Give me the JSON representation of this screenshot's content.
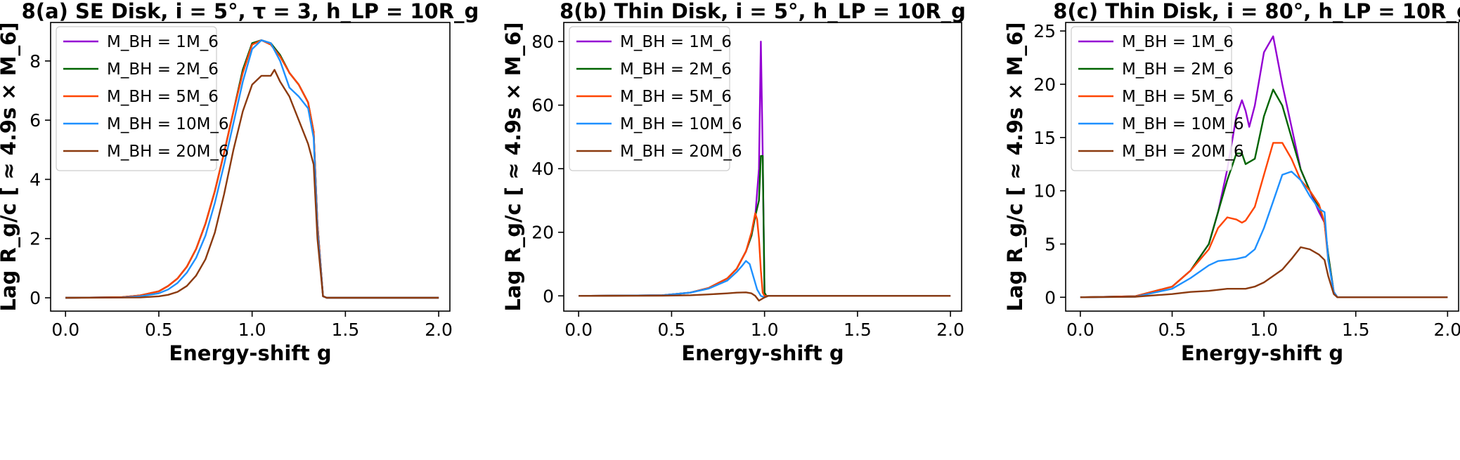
{
  "chart_data": [
    {
      "type": "line",
      "title": "8(a) SE Disk, i = 5°, τ = 3, h_LP = 10R_g",
      "xlabel": "Energy-shift g",
      "ylabel": "Lag R_g/c [ ≈ 4.9s × M_6]",
      "xlim": [
        -0.08,
        2.06
      ],
      "ylim": [
        -0.45,
        9.3
      ],
      "xticks": [
        "0.0",
        "0.5",
        "1.0",
        "1.5",
        "2.0"
      ],
      "yticks": [
        "0",
        "2",
        "4",
        "6",
        "8"
      ],
      "legend_loc": "top-left",
      "series": [
        {
          "name": "M_BH = 1M_6",
          "color": "#9400d3",
          "x": [
            0.0,
            0.3,
            0.4,
            0.5,
            0.55,
            0.6,
            0.65,
            0.7,
            0.75,
            0.8,
            0.85,
            0.9,
            0.95,
            1.0,
            1.05,
            1.1,
            1.15,
            1.2,
            1.25,
            1.3,
            1.33,
            1.35,
            1.38,
            1.4,
            1.6,
            1.8,
            2.0
          ],
          "y": [
            0,
            0.02,
            0.08,
            0.22,
            0.4,
            0.65,
            1.05,
            1.65,
            2.5,
            3.6,
            4.9,
            6.3,
            7.7,
            8.6,
            8.7,
            8.6,
            8.2,
            7.6,
            7.2,
            6.6,
            5.6,
            2.5,
            0.05,
            0,
            0,
            0,
            0
          ]
        },
        {
          "name": "M_BH = 2M_6",
          "color": "#006400",
          "x": [
            0.0,
            0.3,
            0.4,
            0.5,
            0.55,
            0.6,
            0.65,
            0.7,
            0.75,
            0.8,
            0.85,
            0.9,
            0.95,
            1.0,
            1.05,
            1.1,
            1.15,
            1.2,
            1.25,
            1.3,
            1.33,
            1.35,
            1.38,
            1.4,
            1.6,
            1.8,
            2.0
          ],
          "y": [
            0,
            0.02,
            0.08,
            0.22,
            0.4,
            0.65,
            1.05,
            1.65,
            2.5,
            3.6,
            4.9,
            6.3,
            7.7,
            8.6,
            8.7,
            8.6,
            8.2,
            7.6,
            7.2,
            6.6,
            5.6,
            2.5,
            0.05,
            0,
            0,
            0,
            0
          ]
        },
        {
          "name": "M_BH = 5M_6",
          "color": "#ff4500",
          "x": [
            0.0,
            0.3,
            0.4,
            0.5,
            0.55,
            0.6,
            0.65,
            0.7,
            0.75,
            0.8,
            0.85,
            0.9,
            0.95,
            1.0,
            1.05,
            1.1,
            1.15,
            1.2,
            1.25,
            1.3,
            1.33,
            1.35,
            1.38,
            1.4,
            1.6,
            1.8,
            2.0
          ],
          "y": [
            0,
            0.02,
            0.08,
            0.22,
            0.4,
            0.65,
            1.05,
            1.65,
            2.5,
            3.6,
            4.9,
            6.3,
            7.6,
            8.55,
            8.7,
            8.55,
            8.15,
            7.6,
            7.2,
            6.6,
            5.6,
            2.5,
            0.05,
            0,
            0,
            0,
            0
          ]
        },
        {
          "name": "M_BH = 10M_6",
          "color": "#1e90ff",
          "x": [
            0.0,
            0.3,
            0.4,
            0.5,
            0.55,
            0.6,
            0.65,
            0.7,
            0.75,
            0.8,
            0.85,
            0.9,
            0.95,
            1.0,
            1.05,
            1.1,
            1.15,
            1.2,
            1.25,
            1.3,
            1.33,
            1.35,
            1.38,
            1.4,
            1.6,
            1.8,
            2.0
          ],
          "y": [
            0,
            0.01,
            0.05,
            0.15,
            0.28,
            0.5,
            0.85,
            1.35,
            2.1,
            3.2,
            4.5,
            5.9,
            7.3,
            8.4,
            8.7,
            8.6,
            8.0,
            7.1,
            6.8,
            6.4,
            5.4,
            2.3,
            0.05,
            0,
            0,
            0,
            0
          ]
        },
        {
          "name": "M_BH = 20M_6",
          "color": "#8b3a0f",
          "x": [
            0.0,
            0.4,
            0.5,
            0.55,
            0.6,
            0.65,
            0.7,
            0.75,
            0.8,
            0.85,
            0.9,
            0.95,
            1.0,
            1.05,
            1.1,
            1.12,
            1.15,
            1.2,
            1.25,
            1.3,
            1.33,
            1.35,
            1.38,
            1.4,
            1.6,
            1.8,
            2.0
          ],
          "y": [
            0,
            0.01,
            0.05,
            0.1,
            0.2,
            0.4,
            0.75,
            1.3,
            2.2,
            3.5,
            5.0,
            6.3,
            7.2,
            7.5,
            7.5,
            7.7,
            7.3,
            6.8,
            6.0,
            5.2,
            4.5,
            2.0,
            0.05,
            0,
            0,
            0,
            0
          ]
        }
      ]
    },
    {
      "type": "line",
      "title": "8(b) Thin Disk, i = 5°, h_LP = 10R_g",
      "xlabel": "Energy-shift g",
      "ylabel": "Lag R_g/c [ ≈ 4.9s × M_6]",
      "xlim": [
        -0.08,
        2.06
      ],
      "ylim": [
        -4.8,
        86
      ],
      "xticks": [
        "0.0",
        "0.5",
        "1.0",
        "1.5",
        "2.0"
      ],
      "yticks": [
        "0",
        "20",
        "40",
        "60",
        "80"
      ],
      "legend_loc": "top-left",
      "series": [
        {
          "name": "M_BH = 1M_6",
          "color": "#9400d3",
          "x": [
            0.0,
            0.45,
            0.6,
            0.7,
            0.8,
            0.85,
            0.9,
            0.93,
            0.95,
            0.97,
            0.98,
            0.99,
            1.0,
            1.01,
            1.2,
            1.5,
            2.0
          ],
          "y": [
            0,
            0.2,
            1.0,
            2.5,
            5.5,
            8.5,
            14,
            19,
            25,
            40,
            80,
            45,
            1,
            0,
            0,
            0,
            0
          ]
        },
        {
          "name": "M_BH = 2M_6",
          "color": "#006400",
          "x": [
            0.0,
            0.45,
            0.6,
            0.7,
            0.8,
            0.85,
            0.9,
            0.93,
            0.95,
            0.97,
            0.98,
            0.99,
            1.0,
            1.01,
            1.2,
            1.5,
            2.0
          ],
          "y": [
            0,
            0.2,
            1.0,
            2.5,
            5.5,
            8.5,
            14,
            19,
            25,
            30,
            44,
            44,
            1,
            0,
            0,
            0,
            0
          ]
        },
        {
          "name": "M_BH = 5M_6",
          "color": "#ff4500",
          "x": [
            0.0,
            0.45,
            0.6,
            0.7,
            0.8,
            0.85,
            0.9,
            0.93,
            0.95,
            0.96,
            0.97,
            0.98,
            0.99,
            1.0,
            1.2,
            1.5,
            2.0
          ],
          "y": [
            0,
            0.2,
            1.0,
            2.5,
            5.5,
            8.5,
            14,
            20,
            26,
            24,
            18,
            8,
            1,
            0,
            0,
            0,
            0
          ]
        },
        {
          "name": "M_BH = 10M_6",
          "color": "#1e90ff",
          "x": [
            0.0,
            0.45,
            0.6,
            0.7,
            0.8,
            0.85,
            0.88,
            0.9,
            0.92,
            0.94,
            0.96,
            0.98,
            1.0,
            1.02,
            1.2,
            1.5,
            2.0
          ],
          "y": [
            0,
            0.2,
            1.0,
            2.3,
            4.8,
            7.5,
            9.5,
            11,
            10,
            6,
            2,
            0,
            -0.5,
            0,
            0,
            0,
            0
          ]
        },
        {
          "name": "M_BH = 20M_6",
          "color": "#8b3a0f",
          "x": [
            0.0,
            0.45,
            0.6,
            0.7,
            0.8,
            0.85,
            0.9,
            0.93,
            0.95,
            0.97,
            1.0,
            1.02,
            1.2,
            1.5,
            2.0
          ],
          "y": [
            0,
            0.05,
            0.2,
            0.45,
            0.8,
            1.0,
            1.1,
            0.8,
            0,
            -1.5,
            -0.5,
            0,
            0,
            0,
            0
          ]
        }
      ]
    },
    {
      "type": "line",
      "title": "8(c) Thin Disk, i = 80°, h_LP = 10R_g",
      "xlabel": "Energy-shift g",
      "ylabel": "Lag R_g/c [ ≈ 4.9s × M_6]",
      "xlim": [
        -0.08,
        2.06
      ],
      "ylim": [
        -1.3,
        25.8
      ],
      "xticks": [
        "0.0",
        "0.5",
        "1.0",
        "1.5",
        "2.0"
      ],
      "yticks": [
        "0",
        "5",
        "10",
        "15",
        "20",
        "25"
      ],
      "legend_loc": "top-left",
      "series": [
        {
          "name": "M_BH = 1M_6",
          "color": "#9400d3",
          "x": [
            0.0,
            0.3,
            0.5,
            0.6,
            0.7,
            0.75,
            0.8,
            0.85,
            0.88,
            0.9,
            0.92,
            0.95,
            1.0,
            1.05,
            1.1,
            1.15,
            1.2,
            1.25,
            1.3,
            1.33,
            1.35,
            1.38,
            1.4,
            1.6,
            1.8,
            2.0
          ],
          "y": [
            0,
            0.1,
            1.0,
            2.5,
            5.0,
            8.0,
            12,
            17,
            18.5,
            17.5,
            16,
            18,
            23,
            24.5,
            20,
            16,
            12,
            10,
            8,
            7,
            4,
            0.5,
            0,
            0,
            0,
            0
          ]
        },
        {
          "name": "M_BH = 2M_6",
          "color": "#006400",
          "x": [
            0.0,
            0.3,
            0.5,
            0.6,
            0.7,
            0.75,
            0.8,
            0.85,
            0.88,
            0.9,
            0.95,
            1.0,
            1.05,
            1.1,
            1.15,
            1.2,
            1.25,
            1.3,
            1.33,
            1.35,
            1.38,
            1.4,
            1.6,
            1.8,
            2.0
          ],
          "y": [
            0,
            0.1,
            1.0,
            2.5,
            5.0,
            8.0,
            11,
            13.5,
            13.5,
            12.5,
            13,
            17,
            19.5,
            18,
            15,
            12,
            10,
            8.5,
            7,
            4,
            0.5,
            0,
            0,
            0,
            0
          ]
        },
        {
          "name": "M_BH = 5M_6",
          "color": "#ff4500",
          "x": [
            0.0,
            0.3,
            0.5,
            0.6,
            0.7,
            0.75,
            0.8,
            0.85,
            0.88,
            0.9,
            0.95,
            1.0,
            1.05,
            1.1,
            1.15,
            1.2,
            1.25,
            1.3,
            1.33,
            1.35,
            1.38,
            1.4,
            1.6,
            1.8,
            2.0
          ],
          "y": [
            0,
            0.1,
            1.0,
            2.5,
            4.5,
            6.5,
            7.5,
            7.3,
            7.0,
            7.2,
            8.5,
            11.5,
            14.5,
            14.5,
            13,
            11,
            10,
            8.7,
            7,
            3.5,
            0.5,
            0,
            0,
            0,
            0
          ]
        },
        {
          "name": "M_BH = 10M_6",
          "color": "#1e90ff",
          "x": [
            0.0,
            0.3,
            0.5,
            0.6,
            0.7,
            0.75,
            0.8,
            0.85,
            0.9,
            0.95,
            1.0,
            1.05,
            1.1,
            1.15,
            1.2,
            1.25,
            1.3,
            1.33,
            1.35,
            1.38,
            1.4,
            1.6,
            1.8,
            2.0
          ],
          "y": [
            0,
            0.05,
            0.8,
            1.8,
            3.0,
            3.4,
            3.5,
            3.6,
            3.8,
            4.5,
            6.5,
            9.0,
            11.5,
            11.8,
            11,
            9.5,
            8.3,
            8.0,
            3.5,
            0.5,
            0,
            0,
            0,
            0
          ]
        },
        {
          "name": "M_BH = 20M_6",
          "color": "#8b3a0f",
          "x": [
            0.0,
            0.3,
            0.5,
            0.6,
            0.7,
            0.8,
            0.9,
            0.95,
            1.0,
            1.05,
            1.1,
            1.15,
            1.2,
            1.25,
            1.3,
            1.33,
            1.35,
            1.38,
            1.4,
            1.6,
            1.8,
            2.0
          ],
          "y": [
            0,
            0.05,
            0.3,
            0.5,
            0.6,
            0.8,
            0.8,
            1.0,
            1.4,
            2.0,
            2.6,
            3.6,
            4.7,
            4.5,
            4.0,
            3.5,
            2.0,
            0.3,
            0,
            0,
            0,
            0
          ]
        }
      ]
    }
  ]
}
